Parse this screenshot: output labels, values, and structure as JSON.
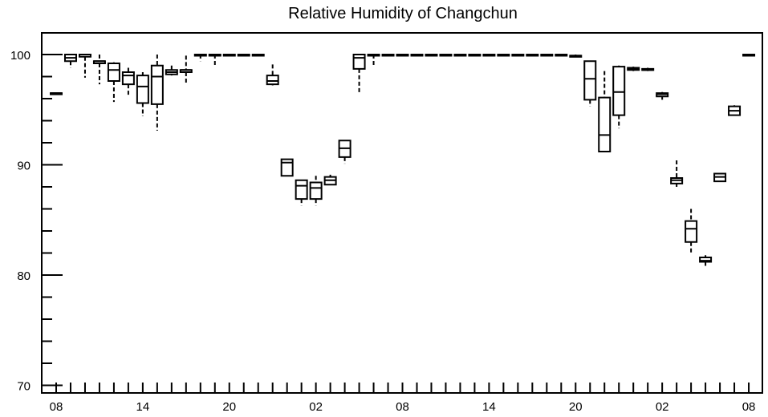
{
  "chart_data": {
    "type": "box",
    "title": "Relative Humidity of Changchun",
    "xlabel": "",
    "ylabel": "",
    "ylim": [
      69,
      102
    ],
    "grid": false,
    "y_ticks": [
      70,
      80,
      90,
      100
    ],
    "x_tick_labels": [
      "08",
      "14",
      "20",
      "02",
      "08",
      "14",
      "20",
      "02",
      "08"
    ],
    "x_tick_hours_from_start": [
      0,
      6,
      12,
      18,
      24,
      30,
      36,
      42,
      48
    ],
    "boxes": [
      {
        "hour": 0,
        "whisker_low": 96.4,
        "q1": 96.4,
        "median": 96.5,
        "q3": 96.5,
        "whisker_high": 96.5
      },
      {
        "hour": 1,
        "whisker_low": 98.8,
        "q1": 99.4,
        "median": 99.7,
        "q3": 100,
        "whisker_high": 100
      },
      {
        "hour": 2,
        "whisker_low": 97.9,
        "q1": 99.8,
        "median": 100,
        "q3": 100,
        "whisker_high": 100
      },
      {
        "hour": 3,
        "whisker_low": 97.3,
        "q1": 99.2,
        "median": 99.4,
        "q3": 99.4,
        "whisker_high": 100
      },
      {
        "hour": 4,
        "whisker_low": 95.7,
        "q1": 97.6,
        "median": 98.6,
        "q3": 99.2,
        "whisker_high": 99.3
      },
      {
        "hour": 5,
        "whisker_low": 96.2,
        "q1": 97.3,
        "median": 98.1,
        "q3": 98.4,
        "whisker_high": 98.8
      },
      {
        "hour": 6,
        "whisker_low": 94.4,
        "q1": 95.6,
        "median": 97.1,
        "q3": 98.1,
        "whisker_high": 98.4
      },
      {
        "hour": 7,
        "whisker_low": 93.1,
        "q1": 95.5,
        "median": 98.0,
        "q3": 99.0,
        "whisker_high": 100
      },
      {
        "hour": 8,
        "whisker_low": 98.1,
        "q1": 98.2,
        "median": 98.4,
        "q3": 98.6,
        "whisker_high": 99.0
      },
      {
        "hour": 9,
        "whisker_low": 97.3,
        "q1": 98.4,
        "median": 98.6,
        "q3": 98.6,
        "whisker_high": 99.9
      },
      {
        "hour": 10,
        "whisker_low": 99.4,
        "q1": 100,
        "median": 100,
        "q3": 100,
        "whisker_high": 100
      },
      {
        "hour": 11,
        "whisker_low": 99.0,
        "q1": 100,
        "median": 100,
        "q3": 100,
        "whisker_high": 100
      },
      {
        "hour": 12,
        "whisker_low": 100,
        "q1": 100,
        "median": 100,
        "q3": 100,
        "whisker_high": 100
      },
      {
        "hour": 13,
        "whisker_low": 100,
        "q1": 100,
        "median": 100,
        "q3": 100,
        "whisker_high": 100
      },
      {
        "hour": 14,
        "whisker_low": 100,
        "q1": 100,
        "median": 100,
        "q3": 100,
        "whisker_high": 100
      },
      {
        "hour": 15,
        "whisker_low": 97.2,
        "q1": 97.3,
        "median": 97.6,
        "q3": 98.1,
        "whisker_high": 99.1
      },
      {
        "hour": 16,
        "whisker_low": 89.0,
        "q1": 89.0,
        "median": 90.2,
        "q3": 90.5,
        "whisker_high": 90.5
      },
      {
        "hour": 17,
        "whisker_low": 86.3,
        "q1": 86.9,
        "median": 88.1,
        "q3": 88.6,
        "whisker_high": 88.6
      },
      {
        "hour": 18,
        "whisker_low": 86.3,
        "q1": 86.9,
        "median": 87.9,
        "q3": 88.4,
        "whisker_high": 89.0
      },
      {
        "hour": 19,
        "whisker_low": 88.2,
        "q1": 88.2,
        "median": 88.6,
        "q3": 88.9,
        "whisker_high": 89.1
      },
      {
        "hour": 20,
        "whisker_low": 90.1,
        "q1": 90.7,
        "median": 91.5,
        "q3": 92.2,
        "whisker_high": 92.2
      },
      {
        "hour": 21,
        "whisker_low": 96.4,
        "q1": 98.7,
        "median": 99.7,
        "q3": 100,
        "whisker_high": 100
      },
      {
        "hour": 22,
        "whisker_low": 99.0,
        "q1": 100,
        "median": 100,
        "q3": 100,
        "whisker_high": 100
      },
      {
        "hour": 23,
        "whisker_low": 100,
        "q1": 100,
        "median": 100,
        "q3": 100,
        "whisker_high": 100
      },
      {
        "hour": 24,
        "whisker_low": 100,
        "q1": 100,
        "median": 100,
        "q3": 100,
        "whisker_high": 100
      },
      {
        "hour": 25,
        "whisker_low": 100,
        "q1": 100,
        "median": 100,
        "q3": 100,
        "whisker_high": 100
      },
      {
        "hour": 26,
        "whisker_low": 100,
        "q1": 100,
        "median": 100,
        "q3": 100,
        "whisker_high": 100
      },
      {
        "hour": 27,
        "whisker_low": 100,
        "q1": 100,
        "median": 100,
        "q3": 100,
        "whisker_high": 100
      },
      {
        "hour": 28,
        "whisker_low": 100,
        "q1": 100,
        "median": 100,
        "q3": 100,
        "whisker_high": 100
      },
      {
        "hour": 29,
        "whisker_low": 100,
        "q1": 100,
        "median": 100,
        "q3": 100,
        "whisker_high": 100
      },
      {
        "hour": 30,
        "whisker_low": 100,
        "q1": 100,
        "median": 100,
        "q3": 100,
        "whisker_high": 100
      },
      {
        "hour": 31,
        "whisker_low": 100,
        "q1": 100,
        "median": 100,
        "q3": 100,
        "whisker_high": 100
      },
      {
        "hour": 32,
        "whisker_low": 100,
        "q1": 100,
        "median": 100,
        "q3": 100,
        "whisker_high": 100
      },
      {
        "hour": 33,
        "whisker_low": 100,
        "q1": 100,
        "median": 100,
        "q3": 100,
        "whisker_high": 100
      },
      {
        "hour": 34,
        "whisker_low": 100,
        "q1": 100,
        "median": 100,
        "q3": 100,
        "whisker_high": 100
      },
      {
        "hour": 35,
        "whisker_low": 100,
        "q1": 100,
        "median": 100,
        "q3": 100,
        "whisker_high": 100
      },
      {
        "hour": 36,
        "whisker_low": 99.8,
        "q1": 99.8,
        "median": 99.9,
        "q3": 99.9,
        "whisker_high": 100
      },
      {
        "hour": 37,
        "whisker_low": 95.3,
        "q1": 95.9,
        "median": 97.8,
        "q3": 99.4,
        "whisker_high": 99.4
      },
      {
        "hour": 38,
        "whisker_low": 91.2,
        "q1": 91.2,
        "median": 92.7,
        "q3": 96.1,
        "whisker_high": 98.5
      },
      {
        "hour": 39,
        "whisker_low": 93.3,
        "q1": 94.5,
        "median": 96.6,
        "q3": 98.9,
        "whisker_high": 99.0
      },
      {
        "hour": 40,
        "whisker_low": 98.5,
        "q1": 98.6,
        "median": 98.7,
        "q3": 98.8,
        "whisker_high": 98.9
      },
      {
        "hour": 41,
        "whisker_low": 98.5,
        "q1": 98.6,
        "median": 98.6,
        "q3": 98.7,
        "whisker_high": 98.8
      },
      {
        "hour": 42,
        "whisker_low": 95.9,
        "q1": 96.2,
        "median": 96.4,
        "q3": 96.5,
        "whisker_high": 96.6
      },
      {
        "hour": 43,
        "whisker_low": 88.0,
        "q1": 88.3,
        "median": 88.6,
        "q3": 88.8,
        "whisker_high": 90.4
      },
      {
        "hour": 44,
        "whisker_low": 81.9,
        "q1": 83.0,
        "median": 84.2,
        "q3": 84.9,
        "whisker_high": 86.0
      },
      {
        "hour": 45,
        "whisker_low": 80.7,
        "q1": 81.2,
        "median": 81.3,
        "q3": 81.6,
        "whisker_high": 81.8
      },
      {
        "hour": 46,
        "whisker_low": 88.5,
        "q1": 88.5,
        "median": 88.9,
        "q3": 89.2,
        "whisker_high": 89.2
      },
      {
        "hour": 47,
        "whisker_low": 94.5,
        "q1": 94.5,
        "median": 94.9,
        "q3": 95.3,
        "whisker_high": 95.4
      },
      {
        "hour": 48,
        "whisker_low": 99.9,
        "q1": 99.9,
        "median": 100,
        "q3": 100,
        "whisker_high": 100
      }
    ]
  }
}
